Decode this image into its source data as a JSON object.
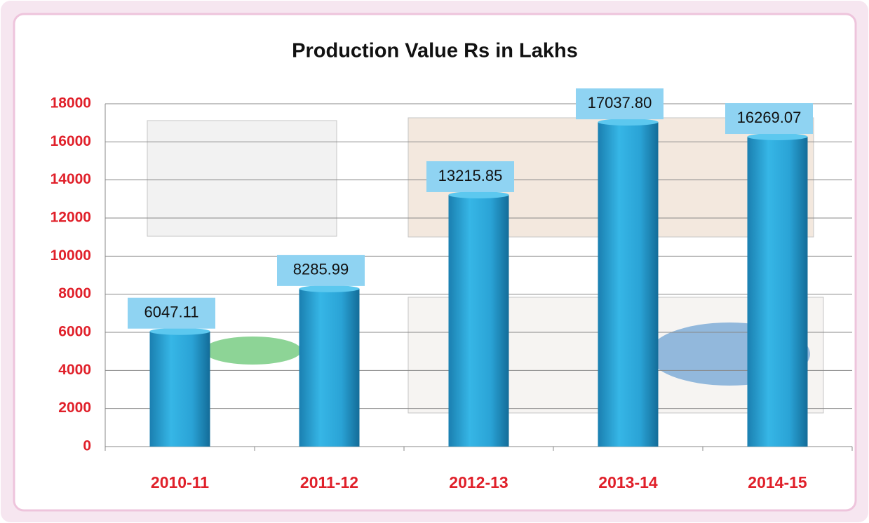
{
  "chart_data": {
    "type": "bar",
    "title": "Production Value Rs in Lakhs",
    "categories": [
      "2010-11",
      "2011-12",
      "2012-13",
      "2013-14",
      "2014-15"
    ],
    "values": [
      6047.11,
      8285.99,
      13215.85,
      17037.8,
      16269.07
    ],
    "value_labels": [
      "6047.11",
      "8285.99",
      "13215.85",
      "17037.80",
      "16269.07"
    ],
    "color": "#2aa3d6",
    "ylim": [
      0,
      18000
    ],
    "yticks": [
      0,
      2000,
      4000,
      6000,
      8000,
      10000,
      12000,
      14000,
      16000,
      18000
    ],
    "grid": true
  }
}
